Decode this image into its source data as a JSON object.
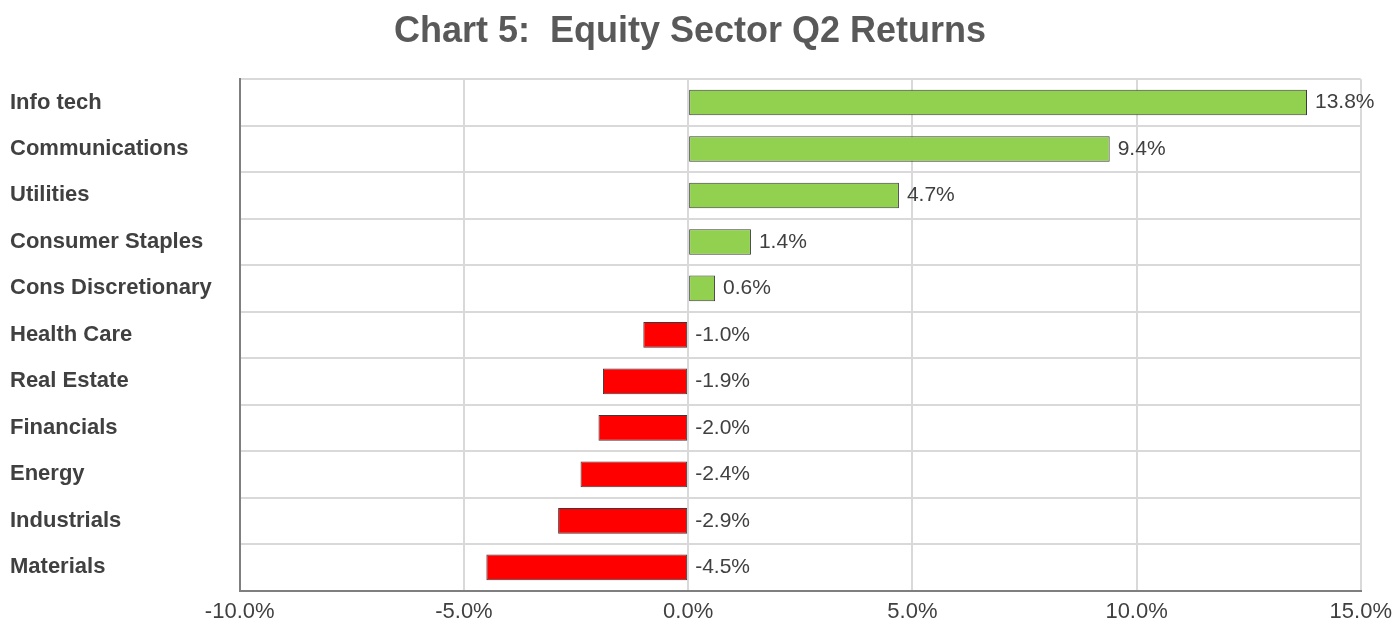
{
  "chart_data": {
    "type": "bar",
    "title": "Chart 5:  Equity Sector Q2 Returns",
    "orientation": "horizontal",
    "categories": [
      "Info tech",
      "Communications",
      "Utilities",
      "Consumer Staples",
      "Cons Discretionary",
      "Health Care",
      "Real Estate",
      "Financials",
      "Energy",
      "Industrials",
      "Materials"
    ],
    "values": [
      13.8,
      9.4,
      4.7,
      1.4,
      0.6,
      -1.0,
      -1.9,
      -2.0,
      -2.4,
      -2.9,
      -4.5
    ],
    "value_labels": [
      "13.8%",
      "9.4%",
      "4.7%",
      "1.4%",
      "0.6%",
      "-1.0%",
      "-1.9%",
      "-2.0%",
      "-2.4%",
      "-2.9%",
      "-4.5%"
    ],
    "colors": [
      "#92d050",
      "#92d050",
      "#92d050",
      "#92d050",
      "#92d050",
      "#ff0000",
      "#ff0000",
      "#ff0000",
      "#ff0000",
      "#ff0000",
      "#ff0000"
    ],
    "xlim": [
      -10,
      15
    ],
    "xticks": [
      {
        "value": -10,
        "label": "-10.0%"
      },
      {
        "value": -5,
        "label": "-5.0%"
      },
      {
        "value": 0,
        "label": "0.0%"
      },
      {
        "value": 5,
        "label": "5.0%"
      },
      {
        "value": 10,
        "label": "10.0%"
      },
      {
        "value": 15,
        "label": "15.0%"
      }
    ],
    "grid": true,
    "data_labels": true
  }
}
